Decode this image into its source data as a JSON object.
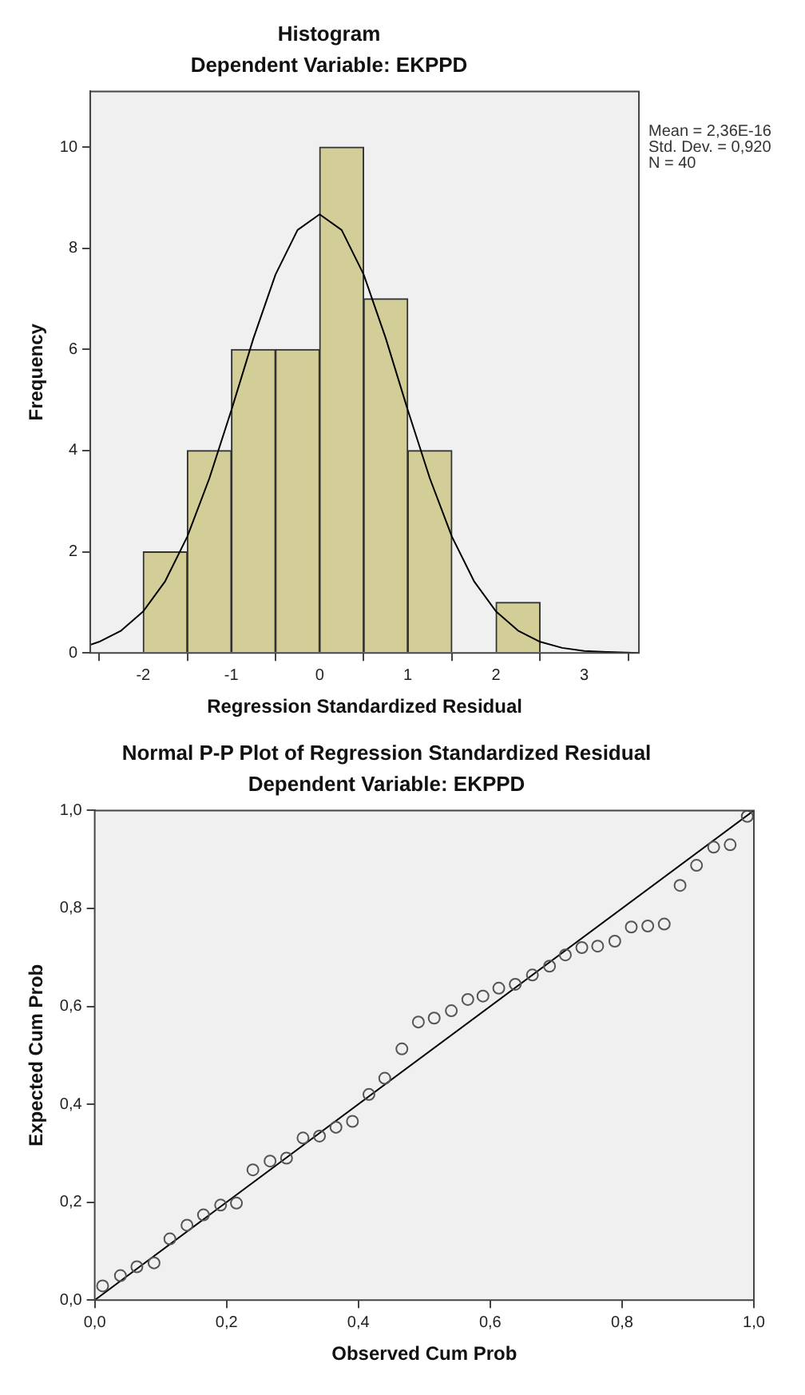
{
  "chart_data": [
    {
      "type": "histogram",
      "title": "Histogram",
      "subtitle": "Dependent Variable: EKPPD",
      "xlabel": "Regression Standardized Residual",
      "ylabel": "Frequency",
      "bins": [
        -2,
        -1.5,
        -1,
        -0.5,
        0,
        0.5,
        1,
        1.5,
        2,
        2.5
      ],
      "values": [
        2,
        4,
        6,
        6,
        10,
        7,
        4,
        0,
        1
      ],
      "color": "#d3ce97",
      "series": [
        {
          "type": "line",
          "color": "#000000",
          "x": [
            -2.6,
            -2.5,
            -2.25,
            -2,
            -1.75,
            -1.5,
            -1.25,
            -1,
            -0.75,
            -0.5,
            -0.25,
            0,
            0.25,
            0.5,
            0.75,
            1,
            1.25,
            1.5,
            1.75,
            2,
            2.25,
            2.5,
            2.75,
            3,
            3.25,
            3.62
          ],
          "values": [
            0.16,
            0.22,
            0.44,
            0.82,
            1.42,
            2.3,
            3.45,
            4.8,
            6.22,
            7.48,
            8.36,
            8.67,
            8.36,
            7.48,
            6.22,
            4.8,
            3.45,
            2.3,
            1.42,
            0.82,
            0.44,
            0.22,
            0.1,
            0.04,
            0.02,
            0
          ]
        }
      ],
      "xlim": [
        -2.6,
        3.62
      ],
      "xticks": [
        -2,
        -1,
        0,
        1,
        2,
        3
      ],
      "ylim": [
        0,
        11.1
      ],
      "yticks": [
        0,
        2,
        4,
        6,
        8,
        10
      ],
      "grid": false,
      "legend": false,
      "annotations": [
        "Mean = 2,36E-16",
        "Std. Dev. = 0,920",
        "N = 40"
      ]
    },
    {
      "type": "scatter",
      "title": "Normal P-P Plot of Regression Standardized Residual",
      "subtitle": "Dependent Variable: EKPPD",
      "xlabel": "Observed Cum Prob",
      "ylabel": "Expected Cum Prob",
      "series": [
        {
          "type": "scatter",
          "color": "#555555",
          "marker": "circle",
          "x": [
            0.012,
            0.039,
            0.064,
            0.09,
            0.114,
            0.14,
            0.165,
            0.191,
            0.215,
            0.24,
            0.266,
            0.291,
            0.316,
            0.341,
            0.366,
            0.391,
            0.416,
            0.44,
            0.466,
            0.491,
            0.515,
            0.541,
            0.566,
            0.589,
            0.613,
            0.638,
            0.664,
            0.69,
            0.714,
            0.739,
            0.763,
            0.789,
            0.814,
            0.839,
            0.864,
            0.888,
            0.913,
            0.939,
            0.964,
            0.99
          ],
          "values": [
            0.029,
            0.05,
            0.068,
            0.076,
            0.125,
            0.153,
            0.174,
            0.194,
            0.198,
            0.266,
            0.284,
            0.29,
            0.331,
            0.335,
            0.353,
            0.365,
            0.42,
            0.453,
            0.513,
            0.568,
            0.576,
            0.591,
            0.614,
            0.621,
            0.637,
            0.645,
            0.664,
            0.682,
            0.705,
            0.72,
            0.723,
            0.733,
            0.762,
            0.764,
            0.768,
            0.847,
            0.888,
            0.925,
            0.93,
            0.988
          ]
        },
        {
          "type": "line",
          "color": "#000000",
          "x": [
            0,
            1
          ],
          "values": [
            0,
            1
          ]
        }
      ],
      "xlim": [
        0,
        1
      ],
      "xticks": [
        {
          "value": 0,
          "label": "0,0"
        },
        {
          "value": 0.2,
          "label": "0,2"
        },
        {
          "value": 0.4,
          "label": "0,4"
        },
        {
          "value": 0.6,
          "label": "0,6"
        },
        {
          "value": 0.8,
          "label": "0,8"
        },
        {
          "value": 1,
          "label": "1,0"
        }
      ],
      "ylim": [
        0,
        1
      ],
      "yticks": [
        {
          "value": 0,
          "label": "0,0"
        },
        {
          "value": 0.2,
          "label": "0,2"
        },
        {
          "value": 0.4,
          "label": "0,4"
        },
        {
          "value": 0.6,
          "label": "0,6"
        },
        {
          "value": 0.8,
          "label": "0,8"
        },
        {
          "value": 1,
          "label": "1,0"
        }
      ],
      "grid": false,
      "legend": false
    }
  ]
}
